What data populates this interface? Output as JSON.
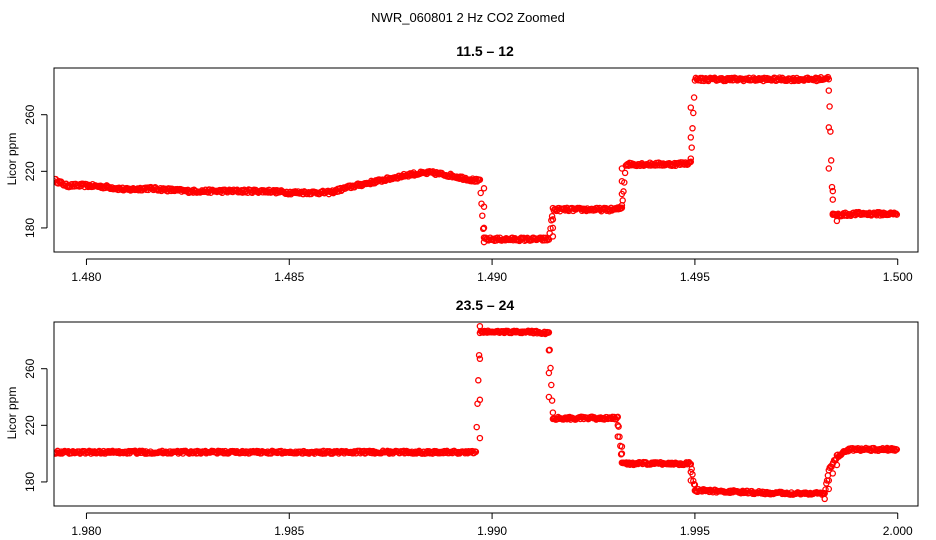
{
  "chart_data": {
    "type": "scatter",
    "title": "NWR_060801  2 Hz CO2 Zoomed",
    "marker_color": "#ff0000",
    "panels": [
      {
        "subtitle": "11.5 – 12",
        "ylabel": "Licor ppm",
        "xlabel": "",
        "xlim": [
          1.4792,
          1.5005
        ],
        "ylim": [
          163,
          293
        ],
        "xticks": [
          "1.480",
          "1.485",
          "1.490",
          "1.495",
          "1.500"
        ],
        "xtick_values": [
          1.48,
          1.485,
          1.49,
          1.495,
          1.5
        ],
        "yticks": [
          "180",
          "220",
          "260"
        ],
        "ytick_values": [
          180,
          220,
          260
        ],
        "profile": [
          [
            1.4792,
            214
          ],
          [
            1.4795,
            210
          ],
          [
            1.48,
            210
          ],
          [
            1.4805,
            209
          ],
          [
            1.481,
            207
          ],
          [
            1.4815,
            208
          ],
          [
            1.482,
            207
          ],
          [
            1.4825,
            206
          ],
          [
            1.483,
            206
          ],
          [
            1.4835,
            206
          ],
          [
            1.484,
            206
          ],
          [
            1.4845,
            206
          ],
          [
            1.485,
            205
          ],
          [
            1.4855,
            205
          ],
          [
            1.486,
            205
          ],
          [
            1.4865,
            209
          ],
          [
            1.487,
            212
          ],
          [
            1.4875,
            215
          ],
          [
            1.488,
            218
          ],
          [
            1.4885,
            219
          ],
          [
            1.489,
            217
          ],
          [
            1.4895,
            214
          ],
          [
            1.4897,
            213
          ],
          [
            1.4898,
            172
          ],
          [
            1.4905,
            172
          ],
          [
            1.491,
            172
          ],
          [
            1.4914,
            172
          ],
          [
            1.4915,
            193
          ],
          [
            1.492,
            193
          ],
          [
            1.4925,
            193
          ],
          [
            1.493,
            193
          ],
          [
            1.4932,
            194
          ],
          [
            1.4933,
            225
          ],
          [
            1.494,
            225
          ],
          [
            1.4945,
            225
          ],
          [
            1.4949,
            226
          ],
          [
            1.495,
            285
          ],
          [
            1.496,
            285
          ],
          [
            1.497,
            285
          ],
          [
            1.498,
            285
          ],
          [
            1.4983,
            286
          ],
          [
            1.4984,
            189
          ],
          [
            1.499,
            190
          ],
          [
            1.4995,
            190
          ],
          [
            1.5,
            190
          ]
        ],
        "transitions": [
          [
            1.4898,
            208
          ],
          [
            1.4898,
            195
          ],
          [
            1.4898,
            180
          ],
          [
            1.4898,
            170
          ],
          [
            1.4915,
            174
          ],
          [
            1.4915,
            180
          ],
          [
            1.4915,
            186
          ],
          [
            1.4932,
            196
          ],
          [
            1.4932,
            204
          ],
          [
            1.4932,
            213
          ],
          [
            1.4932,
            222
          ],
          [
            1.4949,
            229
          ],
          [
            1.4949,
            244
          ],
          [
            1.4949,
            265
          ],
          [
            1.4983,
            277
          ],
          [
            1.4983,
            251
          ],
          [
            1.4983,
            222
          ],
          [
            1.4984,
            206
          ],
          [
            1.4984,
            200
          ],
          [
            1.4984,
            190
          ],
          [
            1.4985,
            185
          ]
        ],
        "noise": 1.2
      },
      {
        "subtitle": "23.5 – 24",
        "ylabel": "Licor ppm",
        "xlabel": "",
        "xlim": [
          1.9792,
          2.0005
        ],
        "ylim": [
          163,
          293
        ],
        "xticks": [
          "1.980",
          "1.985",
          "1.990",
          "1.995",
          "2.000"
        ],
        "xtick_values": [
          1.98,
          1.985,
          1.99,
          1.995,
          2.0
        ],
        "yticks": [
          "180",
          "220",
          "260"
        ],
        "ytick_values": [
          180,
          220,
          260
        ],
        "profile": [
          [
            1.9792,
            201
          ],
          [
            1.98,
            201
          ],
          [
            1.981,
            201
          ],
          [
            1.982,
            201
          ],
          [
            1.983,
            201
          ],
          [
            1.984,
            201
          ],
          [
            1.985,
            201
          ],
          [
            1.986,
            201
          ],
          [
            1.987,
            201
          ],
          [
            1.988,
            201
          ],
          [
            1.989,
            201
          ],
          [
            1.9896,
            201
          ],
          [
            1.9897,
            286
          ],
          [
            1.9905,
            286
          ],
          [
            1.991,
            286
          ],
          [
            1.9914,
            285
          ],
          [
            1.9915,
            225
          ],
          [
            1.992,
            225
          ],
          [
            1.9925,
            225
          ],
          [
            1.9931,
            225
          ],
          [
            1.9932,
            193
          ],
          [
            1.994,
            193
          ],
          [
            1.9945,
            193
          ],
          [
            1.9949,
            193
          ],
          [
            1.995,
            174
          ],
          [
            1.996,
            173
          ],
          [
            1.997,
            172
          ],
          [
            1.998,
            172
          ],
          [
            1.9982,
            172
          ],
          [
            1.9983,
            188
          ],
          [
            1.9985,
            198
          ],
          [
            1.9988,
            203
          ],
          [
            1.9995,
            203
          ],
          [
            2.0,
            203
          ]
        ],
        "transitions": [
          [
            1.9897,
            211
          ],
          [
            1.9897,
            238
          ],
          [
            1.9897,
            267
          ],
          [
            1.9897,
            290
          ],
          [
            1.9914,
            273
          ],
          [
            1.9914,
            257
          ],
          [
            1.9914,
            240
          ],
          [
            1.9915,
            229
          ],
          [
            1.9931,
            220
          ],
          [
            1.9931,
            212
          ],
          [
            1.9932,
            205
          ],
          [
            1.9932,
            200
          ],
          [
            1.9949,
            187
          ],
          [
            1.9949,
            181
          ],
          [
            1.995,
            178
          ],
          [
            1.9982,
            168
          ],
          [
            1.9983,
            175
          ],
          [
            1.9983,
            181
          ],
          [
            1.9984,
            186
          ],
          [
            1.9985,
            192
          ]
        ],
        "noise": 1.0
      }
    ]
  }
}
